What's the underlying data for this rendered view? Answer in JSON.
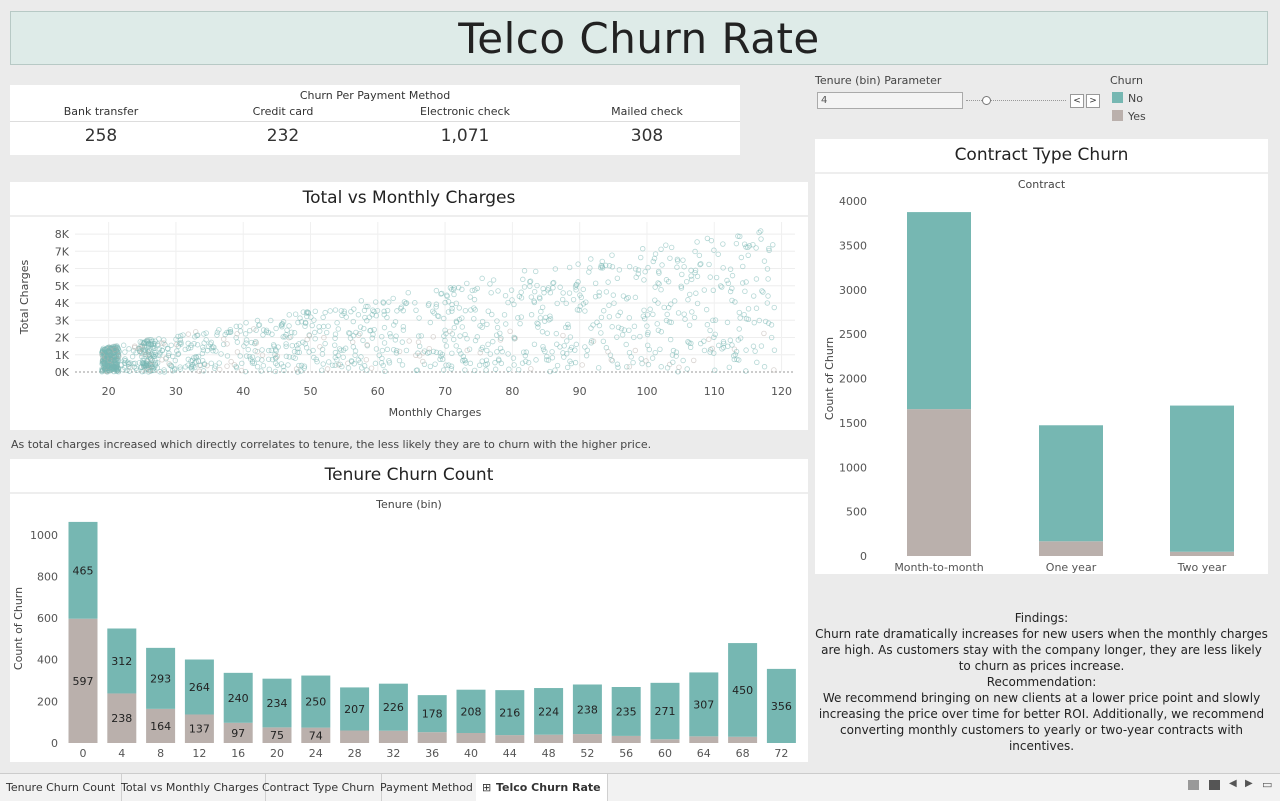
{
  "title": "Telco Churn Rate",
  "payment": {
    "title": "Churn Per Payment Method",
    "methods": [
      {
        "label": "Bank transfer",
        "value": "258"
      },
      {
        "label": "Credit card",
        "value": "232"
      },
      {
        "label": "Electronic check",
        "value": "1,071"
      },
      {
        "label": "Mailed check",
        "value": "308"
      }
    ]
  },
  "parameter": {
    "label": "Tenure (bin) Parameter",
    "value": "4",
    "prev": "<",
    "next": ">"
  },
  "legend": {
    "title": "Churn",
    "items": [
      {
        "label": "No",
        "color": "#76b7b2"
      },
      {
        "label": "Yes",
        "color": "#bab0ac"
      }
    ]
  },
  "scatter_caption": "As total charges increased which directly correlates to tenure, the less likely they are to churn with the higher price.",
  "findings": {
    "heading": "Findings:",
    "text": "Churn rate dramatically increases for new users when the monthly charges are high. As customers stay with the company longer, they are less likely to churn as prices increase.",
    "rec_heading": "Recommendation:",
    "rec_text": "We recommend bringing on new clients at a lower price point and slowly increasing the price over time for better ROI. Additionally, we recommend converting monthly customers to yearly or two-year contracts with incentives."
  },
  "tabs": [
    "Tenure Churn Count",
    "Total vs Monthly Charges",
    "Contract Type Churn",
    "Payment Method",
    "Telco Churn Rate"
  ],
  "colors": {
    "no": "#76b7b2",
    "yes": "#bab0ac"
  },
  "chart_data": [
    {
      "type": "scatter",
      "title": "Total vs Monthly Charges",
      "xlabel": "Monthly Charges",
      "ylabel": "Total Charges",
      "xlim": [
        15,
        122
      ],
      "ylim": [
        0,
        8700
      ],
      "xticks": [
        "20",
        "30",
        "40",
        "50",
        "60",
        "70",
        "80",
        "90",
        "100",
        "110",
        "120"
      ],
      "yticks": [
        "0K",
        "1K",
        "2K",
        "3K",
        "4K",
        "5K",
        "6K",
        "7K",
        "8K"
      ]
    },
    {
      "type": "bar",
      "title": "Tenure Churn Count",
      "subtitle": "Tenure (bin)",
      "ylabel": "Count of Churn",
      "ylim": [
        0,
        1100
      ],
      "yticks": [
        0,
        200,
        400,
        600,
        800,
        1000
      ],
      "categories": [
        "0",
        "4",
        "8",
        "12",
        "16",
        "20",
        "24",
        "28",
        "32",
        "36",
        "40",
        "44",
        "48",
        "52",
        "56",
        "60",
        "64",
        "68",
        "72"
      ],
      "series": [
        {
          "name": "No",
          "values": [
            465,
            312,
            293,
            264,
            240,
            234,
            250,
            207,
            226,
            178,
            208,
            216,
            224,
            238,
            235,
            271,
            307,
            450,
            356
          ]
        },
        {
          "name": "Yes",
          "values": [
            597,
            238,
            164,
            137,
            97,
            75,
            74,
            60,
            59,
            52,
            48,
            38,
            40,
            43,
            34,
            18,
            32,
            30,
            0
          ]
        }
      ],
      "labels_no": [
        "465",
        "312",
        "293",
        "264",
        "240",
        "234",
        "250",
        "207",
        "226",
        "178",
        "208",
        "216",
        "224",
        "238",
        "235",
        "271",
        "307",
        "450",
        "356"
      ],
      "labels_yes": [
        "597",
        "238",
        "164",
        "137",
        "97",
        "75",
        "74"
      ]
    },
    {
      "type": "bar",
      "title": "Contract Type Churn",
      "subtitle": "Contract",
      "ylabel": "Count of Churn",
      "ylim": [
        0,
        4000
      ],
      "yticks": [
        0,
        500,
        1000,
        1500,
        2000,
        2500,
        3000,
        3500,
        4000
      ],
      "categories": [
        "Month-to-month",
        "One year",
        "Two year"
      ],
      "series": [
        {
          "name": "No",
          "values": [
            2220,
            1307,
            1647
          ]
        },
        {
          "name": "Yes",
          "values": [
            1655,
            166,
            48
          ]
        }
      ]
    }
  ]
}
